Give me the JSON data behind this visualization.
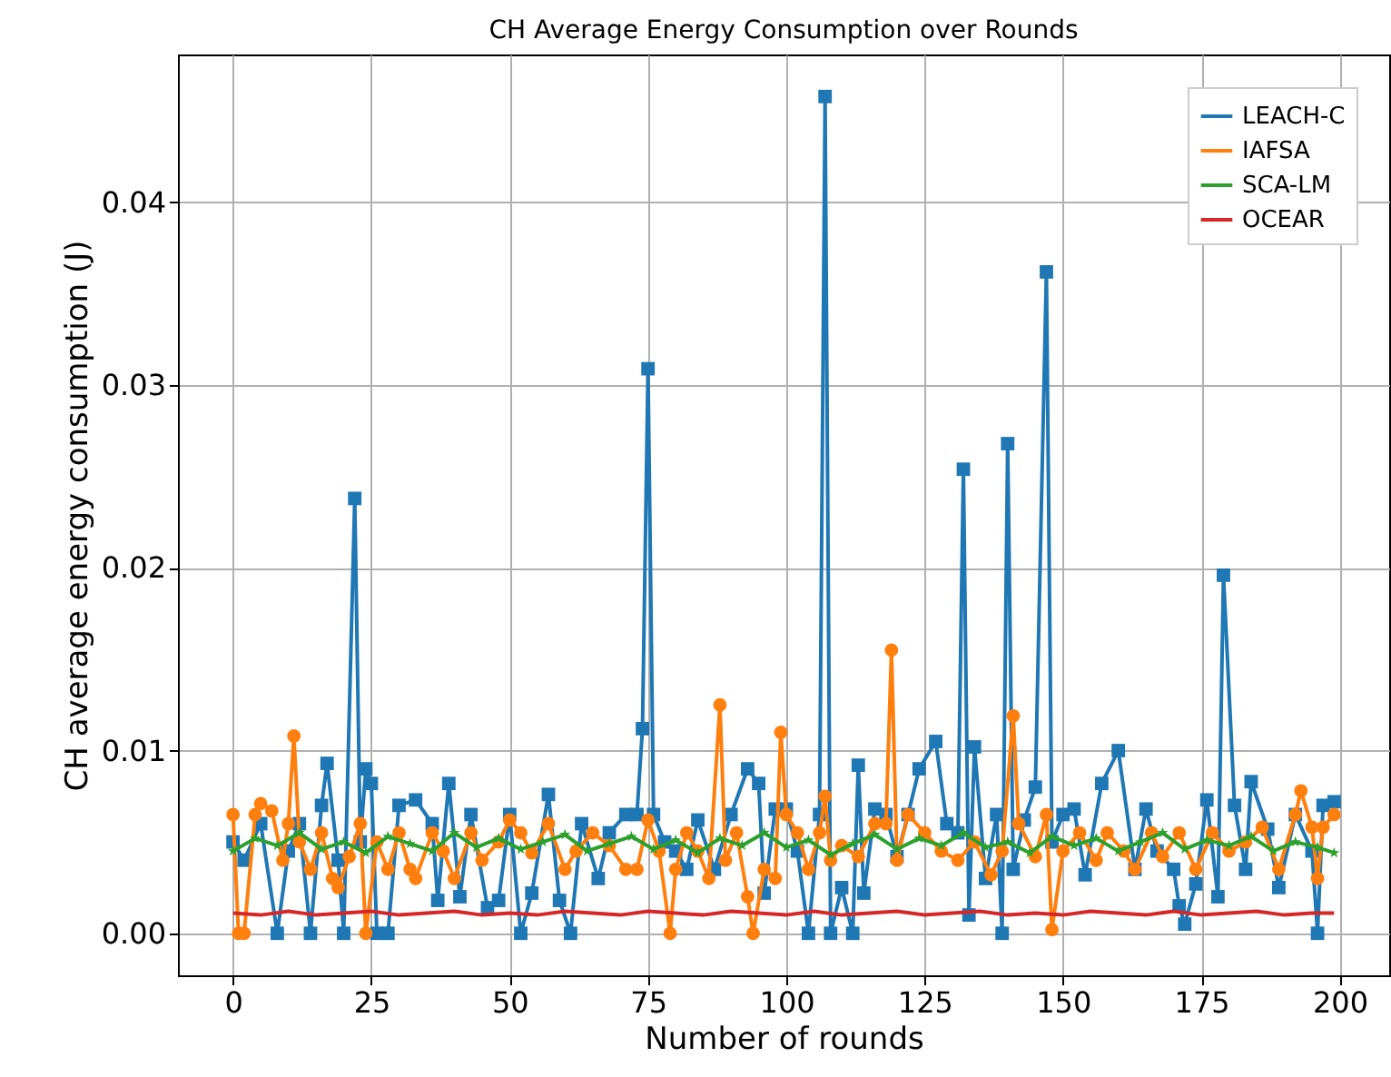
{
  "chart_data": {
    "type": "line",
    "title": "CH Average Energy Consumption over Rounds",
    "xlabel": "Number of rounds",
    "ylabel": "CH average energy consumption (J)",
    "xlim": [
      -9.95,
      208.95
    ],
    "ylim": [
      -0.0023,
      0.0481
    ],
    "xticks": [
      0,
      25,
      50,
      75,
      100,
      125,
      150,
      175,
      200
    ],
    "yticks": [
      {
        "value": 0,
        "label": "0.00"
      },
      {
        "value": 0.01,
        "label": "0.01"
      },
      {
        "value": 0.02,
        "label": "0.02"
      },
      {
        "value": 0.03,
        "label": "0.03"
      },
      {
        "value": 0.04,
        "label": "0.04"
      }
    ],
    "grid": true,
    "legend": "top right",
    "series": [
      {
        "name": "LEACH-C",
        "color": "#1f77b4",
        "marker": "square",
        "x": [
          0,
          2,
          5,
          8,
          10,
          12,
          14,
          16,
          17,
          19,
          20,
          22,
          23,
          24,
          25,
          26,
          28,
          30,
          33,
          36,
          37,
          39,
          41,
          43,
          46,
          48,
          50,
          52,
          54,
          57,
          59,
          61,
          63,
          66,
          68,
          71,
          73,
          74,
          75,
          76,
          78,
          80,
          82,
          84,
          87,
          90,
          93,
          95,
          96,
          98,
          100,
          102,
          104,
          106,
          107,
          108,
          110,
          112,
          113,
          114,
          116,
          118,
          120,
          122,
          124,
          127,
          129,
          131,
          132,
          133,
          134,
          136,
          138,
          139,
          140,
          141,
          143,
          145,
          147,
          148,
          150,
          152,
          154,
          157,
          160,
          163,
          165,
          167,
          170,
          171,
          172,
          174,
          176,
          178,
          179,
          181,
          183,
          184,
          187,
          189,
          192,
          195,
          196,
          197,
          199
        ],
        "values": [
          0.005,
          0.004,
          0.006,
          0.0,
          0.0045,
          0.006,
          0.0,
          0.007,
          0.0093,
          0.004,
          0.0,
          0.0238,
          0.005,
          0.009,
          0.0082,
          0.0,
          0.0,
          0.007,
          0.0073,
          0.006,
          0.0018,
          0.0082,
          0.002,
          0.0065,
          0.0014,
          0.0018,
          0.0065,
          0.0,
          0.0022,
          0.0076,
          0.0018,
          0.0,
          0.006,
          0.003,
          0.0055,
          0.0065,
          0.0065,
          0.0112,
          0.0309,
          0.0065,
          0.005,
          0.0045,
          0.0035,
          0.0062,
          0.0035,
          0.0065,
          0.009,
          0.0082,
          0.0022,
          0.0068,
          0.0068,
          0.0045,
          0.0,
          0.0065,
          0.0458,
          0.0,
          0.0025,
          0.0,
          0.0092,
          0.0022,
          0.0068,
          0.0065,
          0.0042,
          0.0065,
          0.009,
          0.0105,
          0.006,
          0.0055,
          0.0254,
          0.001,
          0.0102,
          0.003,
          0.0065,
          0.0,
          0.0268,
          0.0035,
          0.0062,
          0.008,
          0.0362,
          0.005,
          0.0065,
          0.0068,
          0.0032,
          0.0082,
          0.01,
          0.0035,
          0.0068,
          0.0045,
          0.0035,
          0.0015,
          0.0005,
          0.0027,
          0.0073,
          0.002,
          0.0196,
          0.007,
          0.0035,
          0.0083,
          0.0057,
          0.0025,
          0.0065,
          0.0045,
          0.0,
          0.007,
          0.0072
        ]
      },
      {
        "name": "IAFSA",
        "color": "#ff7f0e",
        "marker": "circle",
        "x": [
          0,
          1,
          2,
          4,
          5,
          7,
          9,
          10,
          11,
          12,
          14,
          16,
          18,
          19,
          21,
          23,
          24,
          26,
          28,
          30,
          32,
          33,
          36,
          38,
          40,
          43,
          45,
          48,
          50,
          52,
          54,
          57,
          60,
          62,
          65,
          68,
          71,
          73,
          75,
          77,
          79,
          80,
          82,
          84,
          86,
          88,
          89,
          91,
          93,
          94,
          96,
          98,
          99,
          100,
          102,
          104,
          106,
          107,
          108,
          110,
          113,
          116,
          118,
          119,
          120,
          122,
          125,
          128,
          131,
          134,
          137,
          139,
          141,
          142,
          145,
          147,
          148,
          150,
          153,
          156,
          158,
          161,
          163,
          166,
          168,
          171,
          174,
          177,
          180,
          183,
          186,
          189,
          192,
          193,
          195,
          196,
          197,
          199
        ],
        "values": [
          0.0065,
          0.0,
          0.0,
          0.0065,
          0.0071,
          0.0067,
          0.004,
          0.006,
          0.0108,
          0.005,
          0.0035,
          0.0055,
          0.003,
          0.0025,
          0.0042,
          0.006,
          0.0,
          0.005,
          0.0035,
          0.0055,
          0.0035,
          0.003,
          0.0055,
          0.0045,
          0.003,
          0.0055,
          0.004,
          0.005,
          0.0062,
          0.0055,
          0.0044,
          0.006,
          0.0035,
          0.0045,
          0.0055,
          0.0048,
          0.0035,
          0.0035,
          0.0062,
          0.0045,
          0.0,
          0.0035,
          0.0055,
          0.0045,
          0.003,
          0.0125,
          0.004,
          0.0055,
          0.002,
          0.0,
          0.0035,
          0.003,
          0.011,
          0.0065,
          0.0055,
          0.0035,
          0.0055,
          0.0075,
          0.004,
          0.0048,
          0.0042,
          0.006,
          0.006,
          0.0155,
          0.004,
          0.0065,
          0.0055,
          0.0045,
          0.004,
          0.005,
          0.0032,
          0.0045,
          0.0119,
          0.006,
          0.0042,
          0.0065,
          0.0002,
          0.0045,
          0.0055,
          0.004,
          0.0055,
          0.0045,
          0.0035,
          0.0055,
          0.0042,
          0.0055,
          0.0035,
          0.0055,
          0.0045,
          0.005,
          0.0058,
          0.0035,
          0.0065,
          0.0078,
          0.0058,
          0.003,
          0.0058,
          0.0065
        ]
      },
      {
        "name": "SCA-LM",
        "color": "#2ca02c",
        "marker": "star",
        "x": [
          0,
          4,
          8,
          12,
          16,
          20,
          24,
          28,
          32,
          36,
          40,
          44,
          48,
          52,
          56,
          60,
          64,
          68,
          72,
          76,
          80,
          84,
          88,
          92,
          96,
          100,
          104,
          108,
          112,
          116,
          120,
          124,
          128,
          132,
          136,
          140,
          144,
          148,
          152,
          156,
          160,
          164,
          168,
          172,
          176,
          180,
          184,
          188,
          192,
          196,
          199
        ],
        "values": [
          0.0045,
          0.0052,
          0.0048,
          0.0055,
          0.0046,
          0.005,
          0.0044,
          0.0053,
          0.0049,
          0.0045,
          0.0055,
          0.0047,
          0.0052,
          0.0046,
          0.005,
          0.0054,
          0.0045,
          0.0049,
          0.0053,
          0.0046,
          0.0051,
          0.0044,
          0.0052,
          0.0048,
          0.0055,
          0.0047,
          0.0051,
          0.0043,
          0.0049,
          0.0054,
          0.0046,
          0.0052,
          0.0048,
          0.0055,
          0.0047,
          0.005,
          0.0044,
          0.0053,
          0.0048,
          0.0052,
          0.0045,
          0.005,
          0.0055,
          0.0046,
          0.0051,
          0.0048,
          0.0053,
          0.0045,
          0.005,
          0.0047,
          0.0044
        ]
      },
      {
        "name": "OCEAR",
        "color": "#d62728",
        "marker": "none",
        "x": [
          0,
          5,
          10,
          15,
          20,
          25,
          30,
          35,
          40,
          45,
          50,
          55,
          60,
          65,
          70,
          75,
          80,
          85,
          90,
          95,
          100,
          105,
          110,
          115,
          120,
          125,
          130,
          135,
          140,
          145,
          150,
          155,
          160,
          165,
          170,
          175,
          180,
          185,
          190,
          195,
          199
        ],
        "values": [
          0.0011,
          0.001,
          0.0012,
          0.001,
          0.0011,
          0.0012,
          0.001,
          0.0011,
          0.0012,
          0.001,
          0.0011,
          0.001,
          0.0012,
          0.0011,
          0.001,
          0.0012,
          0.0011,
          0.001,
          0.0012,
          0.0011,
          0.001,
          0.0012,
          0.001,
          0.0011,
          0.0012,
          0.001,
          0.0011,
          0.0012,
          0.001,
          0.0011,
          0.001,
          0.0012,
          0.0011,
          0.001,
          0.0012,
          0.001,
          0.0011,
          0.0012,
          0.001,
          0.0011,
          0.0011
        ]
      }
    ]
  }
}
